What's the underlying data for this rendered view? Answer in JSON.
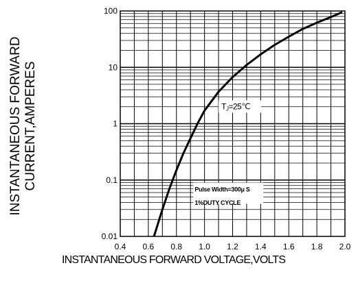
{
  "chart_data": {
    "type": "line",
    "title": "",
    "xlabel": "INSTANTANEOUS FORWARD VOLTAGE,VOLTS",
    "ylabel_lines": [
      "INSTANTANEOUS FORWARD",
      "CURRENT,AMPERES"
    ],
    "x_scale": "linear",
    "y_scale": "log",
    "xlim": [
      0.4,
      2.0
    ],
    "ylim": [
      0.01,
      100
    ],
    "grid": true,
    "x_tick_labels": [
      "0.4",
      "0.6",
      "0.8",
      "1.0",
      "1.2",
      "1.4",
      "1.6",
      "1.8",
      "2.0"
    ],
    "y_tick_labels": [
      "100",
      "10",
      "1",
      "0.1",
      "0.01"
    ],
    "series": [
      {
        "name": "",
        "x": [
          0.64,
          0.7,
          0.75,
          0.8,
          0.85,
          0.9,
          0.95,
          1.0,
          1.1,
          1.2,
          1.3,
          1.4,
          1.5,
          1.6,
          1.7,
          1.8,
          1.9,
          1.98
        ],
        "y": [
          0.01,
          0.03,
          0.07,
          0.15,
          0.3,
          0.55,
          1.0,
          1.7,
          3.7,
          6.7,
          11.0,
          17.0,
          25.0,
          35.0,
          48.0,
          62.0,
          78.0,
          95.0
        ]
      }
    ],
    "annotations": [
      {
        "text_main": "T",
        "text_sub": "J",
        "text_rest": "=25℃",
        "x": 1.12,
        "y": 1.8
      },
      {
        "text": "Pulse Width=300μ S",
        "x": 0.93,
        "y": 0.063
      },
      {
        "text": "1%DUTY CYCLE",
        "x": 0.93,
        "y": 0.036
      }
    ]
  }
}
